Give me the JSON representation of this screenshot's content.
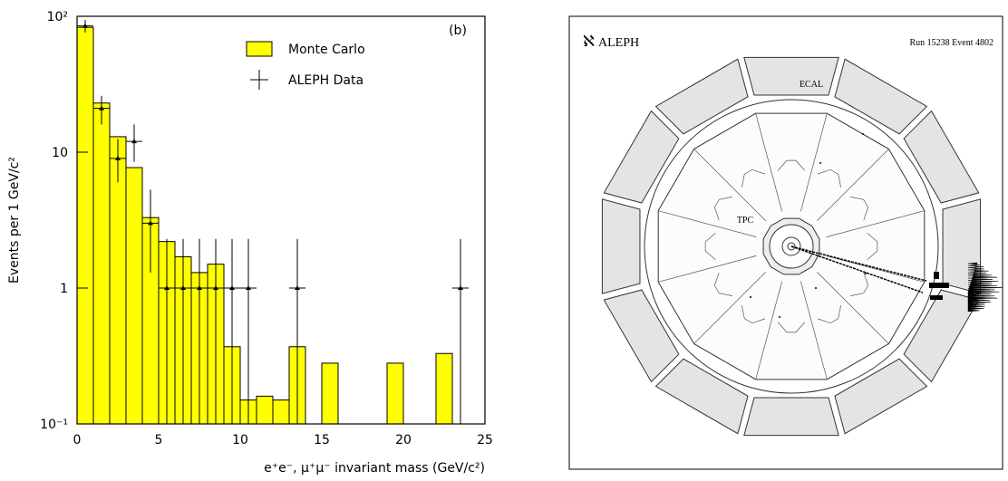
{
  "chart_data": {
    "type": "histogram",
    "xlabel": "e⁺e⁻, μ⁺μ⁻ invariant mass (GeV/c²)",
    "ylabel": "Events per 1 GeV/c²",
    "annotation": "(b)",
    "log_y": true,
    "legend": "upper right",
    "xlim": [
      0,
      25
    ],
    "xticks": [
      0,
      5,
      10,
      15,
      20,
      25
    ],
    "ylim": [
      0.1,
      100
    ],
    "yticks": [
      {
        "value": 0.1,
        "label": "10⁻¹"
      },
      1,
      10,
      {
        "value": 100,
        "label": "10²"
      }
    ],
    "bins": [
      0,
      1,
      2,
      3,
      4,
      5,
      6,
      7,
      8,
      9,
      10,
      11,
      12,
      13,
      14,
      15,
      16,
      17,
      18,
      19,
      20,
      21,
      22,
      23,
      24,
      25
    ],
    "series": [
      {
        "name": "Monte Carlo",
        "color": "#ffff00",
        "values": [
          83,
          23,
          13,
          7.7,
          3.3,
          2.2,
          1.7,
          1.3,
          1.5,
          0.37,
          0.15,
          0.16,
          0.15,
          0.37,
          null,
          0.28,
          null,
          null,
          null,
          0.28,
          null,
          null,
          0.33,
          null,
          null
        ]
      },
      {
        "name": "ALEPH Data",
        "color": "#000000",
        "x": [
          0.5,
          1.5,
          2.5,
          3.5,
          4.5,
          5.5,
          6.5,
          7.5,
          8.5,
          9.5,
          10.5,
          13.5,
          23.5
        ],
        "values": [
          85,
          21,
          9,
          12,
          3,
          1,
          1,
          1,
          1,
          1,
          1,
          1,
          1
        ],
        "err_low": [
          9,
          5,
          3,
          3.5,
          1.7,
          1,
          1,
          1,
          1,
          1,
          1,
          1,
          1
        ],
        "err_high": [
          9,
          5,
          3.5,
          4,
          2.3,
          1.3,
          1.3,
          1.3,
          1.3,
          1.3,
          1.3,
          1.3,
          1.3
        ],
        "xerr": 0.5
      }
    ]
  },
  "event_display": {
    "logo": "ℵ",
    "title": "ALEPH",
    "run_info": "Run 15238 Event 4802",
    "labels": [
      "ECAL",
      "TPC"
    ]
  }
}
